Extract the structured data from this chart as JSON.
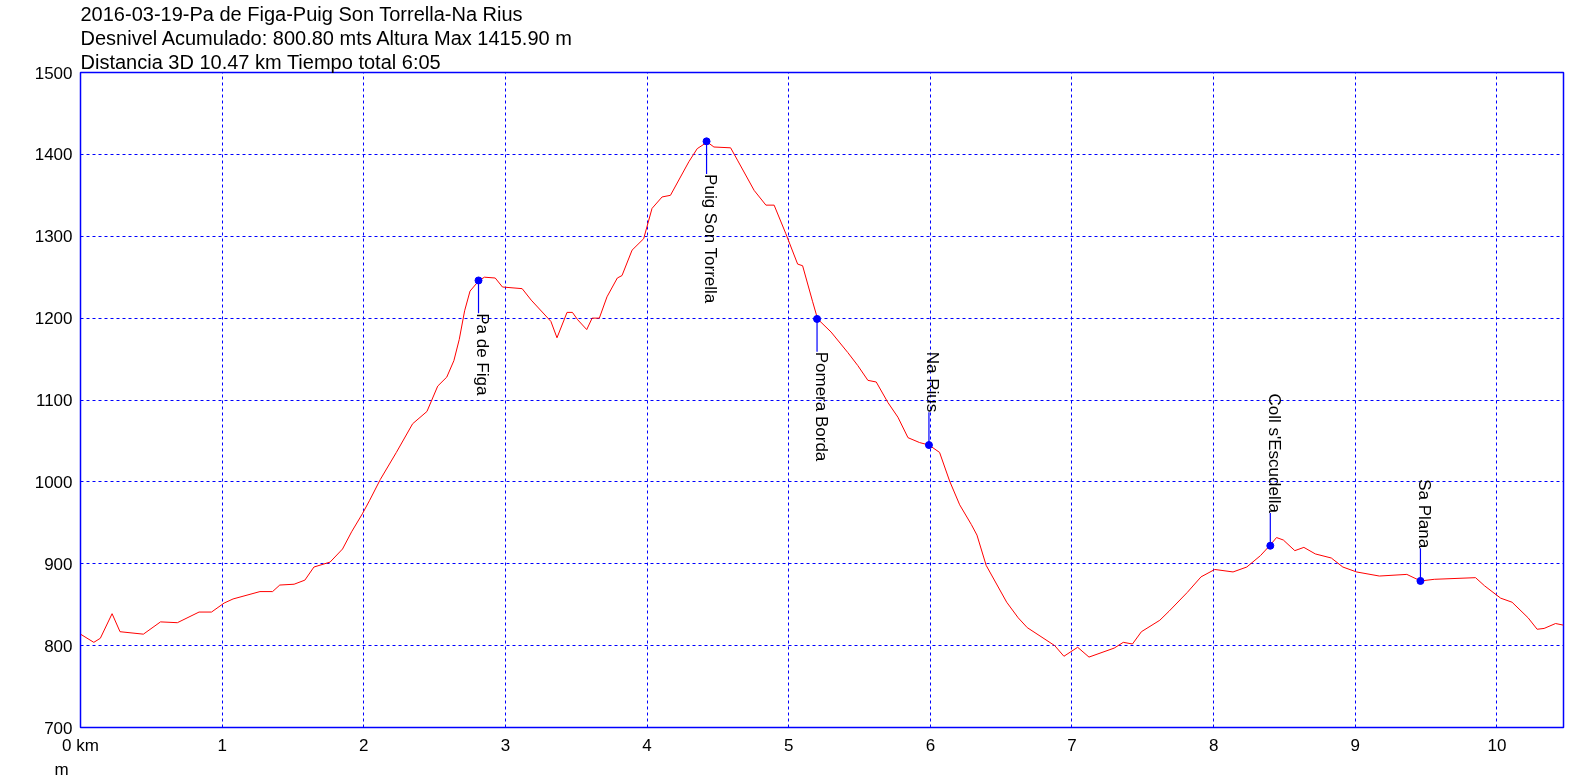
{
  "chart_data": {
    "type": "line",
    "title": "2016-03-19-Pa de Figa-Puig Son Torrella-Na Rius",
    "subtitle": "Desnivel Acumulado: 800.80 mts  Altura Max 1415.90 m",
    "ylabel": "m",
    "annotations": [
      "Distancia 3D 10.47 km  Tiempo total 6:05",
      {
        "text": "Pa  de Figa",
        "x": 2.81,
        "y": 1246
      },
      {
        "text": "Puig Son Torrella",
        "x": 4.42,
        "y": 1415.9
      },
      {
        "text": "Pomera Borda",
        "x": 5.2,
        "y": 1199
      },
      {
        "text": "Na Rius",
        "x": 5.99,
        "y": 1045
      },
      {
        "text": "Coll s'Escudella",
        "x": 8.4,
        "y": 922
      },
      {
        "text": "Sa Plana",
        "x": 9.46,
        "y": 879
      }
    ],
    "series": [
      {
        "color": "#ff0000",
        "x": [
          0,
          0.094,
          0.14,
          0.223,
          0.279,
          0.444,
          0.565,
          0.684,
          0.837,
          0.925,
          1.014,
          1.077,
          1.267,
          1.356,
          1.407,
          1.508,
          1.584,
          1.648,
          1.762,
          1.85,
          1.914,
          1.99,
          2.04,
          2.117,
          2.23,
          2.345,
          2.446,
          2.522,
          2.586,
          2.636,
          2.674,
          2.712,
          2.75,
          2.814,
          2.852,
          2.928,
          2.979,
          3.118,
          3.182,
          3.321,
          3.364,
          3.435,
          3.473,
          3.51,
          3.574,
          3.612,
          3.663,
          3.717,
          3.79,
          3.823,
          3.894,
          3.976,
          4.035,
          4.106,
          4.165,
          4.295,
          4.354,
          4.425,
          4.472,
          4.59,
          4.638,
          4.756,
          4.839,
          4.897,
          4.98,
          5.063,
          5.098,
          5.169,
          5.204,
          5.299,
          5.417,
          5.488,
          5.559,
          5.618,
          5.7,
          5.771,
          5.842,
          5.924,
          5.99,
          6.065,
          6.136,
          6.207,
          6.289,
          6.329,
          6.394,
          6.539,
          6.62,
          6.684,
          6.781,
          6.878,
          6.943,
          7.04,
          7.12,
          7.298,
          7.362,
          7.427,
          7.49,
          7.62,
          7.685,
          7.814,
          7.911,
          8.008,
          8.137,
          8.234,
          8.331,
          8.395,
          8.444,
          8.492,
          8.573,
          8.637,
          8.718,
          8.831,
          8.912,
          9.009,
          9.17,
          9.364,
          9.461,
          9.558,
          9.849,
          9.913,
          10.026,
          10.107,
          10.22,
          10.284,
          10.333,
          10.414,
          10.47
        ],
        "values": [
          814,
          804,
          809,
          839,
          817,
          814,
          829,
          828,
          841,
          841,
          852,
          857,
          866,
          866,
          874,
          875,
          880,
          896,
          902,
          918,
          939,
          961,
          977,
          1003,
          1036,
          1071,
          1086,
          1117,
          1128,
          1148,
          1174,
          1209,
          1233,
          1246,
          1250,
          1249,
          1238,
          1236,
          1222,
          1196,
          1176,
          1207,
          1207,
          1198,
          1186,
          1200,
          1200,
          1226,
          1249,
          1252,
          1283,
          1297,
          1334,
          1348,
          1350,
          1391,
          1407,
          1415,
          1409,
          1408,
          1393,
          1356,
          1338,
          1338,
          1303,
          1266,
          1264,
          1220,
          1199,
          1183,
          1158,
          1142,
          1124,
          1122,
          1097,
          1079,
          1054,
          1048,
          1045,
          1036,
          1001,
          972,
          948,
          935,
          898,
          853,
          834,
          822,
          811,
          800,
          787,
          798,
          786,
          797,
          804,
          802,
          817,
          831,
          842,
          865,
          884,
          893,
          890,
          896,
          910,
          922,
          932,
          929,
          916,
          920,
          912,
          907,
          896,
          890,
          885,
          887,
          879,
          881,
          883,
          873,
          858,
          853,
          834,
          820,
          821,
          827,
          825
        ]
      }
    ],
    "xlim": [
      0,
      10.47
    ],
    "ylim": [
      700,
      1500
    ],
    "xticks": [
      {
        "value": 0,
        "label": "0 km"
      },
      1,
      2,
      3,
      4,
      5,
      6,
      7,
      8,
      9,
      10
    ],
    "yticks": [
      700,
      800,
      900,
      1000,
      1100,
      1200,
      1300,
      1400,
      1500
    ],
    "grid": true
  }
}
